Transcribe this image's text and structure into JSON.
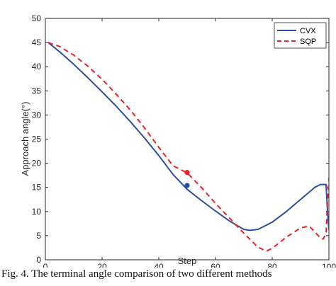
{
  "chart_data": {
    "type": "line",
    "title": "",
    "xlabel": "Step",
    "ylabel": "Approach angle(°)",
    "xlim": [
      0,
      100
    ],
    "ylim": [
      0,
      50
    ],
    "x_ticks": [
      0,
      20,
      40,
      60,
      80,
      100
    ],
    "y_ticks": [
      0,
      5,
      10,
      15,
      20,
      25,
      30,
      35,
      40,
      45,
      50
    ],
    "grid": false,
    "legend_position": "top-right",
    "series": [
      {
        "name": "CVX",
        "color": "#2a4fa0",
        "line_style": "solid",
        "x": [
          1,
          5,
          10,
          15,
          20,
          25,
          30,
          35,
          40,
          45,
          50,
          55,
          60,
          65,
          70,
          72,
          75,
          80,
          85,
          90,
          95,
          97,
          98,
          99,
          99.5,
          100
        ],
        "y": [
          45,
          43.1,
          40.5,
          37.7,
          34.8,
          31.8,
          28.6,
          25.2,
          21.6,
          17.7,
          14.6,
          12.3,
          10.1,
          8.0,
          6.3,
          6.1,
          6.3,
          7.8,
          10.0,
          12.5,
          15.0,
          15.6,
          15.6,
          15.6,
          10,
          6.2
        ]
      },
      {
        "name": "SQP",
        "color": "#e8212a",
        "line_style": "dashed",
        "x": [
          1,
          5,
          10,
          15,
          20,
          25,
          30,
          35,
          40,
          45,
          50,
          55,
          60,
          65,
          70,
          75,
          78,
          80,
          85,
          90,
          93,
          95,
          97,
          98,
          99,
          99.5,
          100
        ],
        "y": [
          45,
          44.2,
          42.4,
          40.1,
          37.4,
          34.3,
          31.0,
          27.3,
          23.3,
          19.5,
          18.0,
          15.0,
          11.7,
          8.6,
          5.5,
          2.6,
          1.8,
          2.4,
          4.7,
          6.6,
          7.0,
          5.8,
          4.5,
          4.3,
          5.5,
          12,
          17
        ]
      }
    ],
    "markers": [
      {
        "series": "CVX",
        "x": 50,
        "y": 15.4,
        "color": "#2a4fa0"
      },
      {
        "series": "SQP",
        "x": 50,
        "y": 18.1,
        "color": "#e8212a"
      }
    ]
  },
  "caption": "Fig. 4.   The terminal angle comparison of two different methods"
}
